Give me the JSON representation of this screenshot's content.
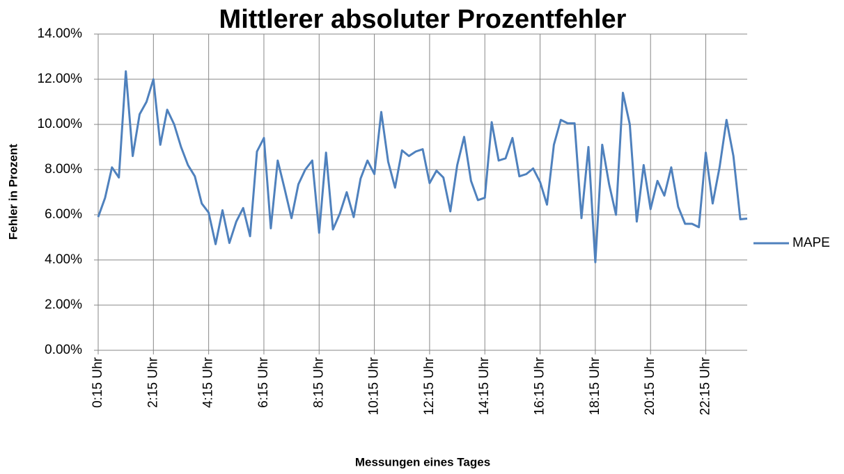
{
  "chart_data": {
    "type": "line",
    "title": "Mittlerer absoluter Prozentfehler",
    "x_label": "Messungen eines Tages",
    "y_label": "Fehler in Prozent",
    "categories": [
      "0:15 Uhr",
      null,
      null,
      null,
      null,
      null,
      null,
      null,
      "2:15 Uhr",
      null,
      null,
      null,
      null,
      null,
      null,
      null,
      "4:15 Uhr",
      null,
      null,
      null,
      null,
      null,
      null,
      null,
      "6:15 Uhr",
      null,
      null,
      null,
      null,
      null,
      null,
      null,
      "8:15 Uhr",
      null,
      null,
      null,
      null,
      null,
      null,
      null,
      "10:15 Uhr",
      null,
      null,
      null,
      null,
      null,
      null,
      null,
      "12:15 Uhr",
      null,
      null,
      null,
      null,
      null,
      null,
      null,
      "14:15 Uhr",
      null,
      null,
      null,
      null,
      null,
      null,
      null,
      "16:15 Uhr",
      null,
      null,
      null,
      null,
      null,
      null,
      null,
      "18:15 Uhr",
      null,
      null,
      null,
      null,
      null,
      null,
      null,
      "20:15 Uhr",
      null,
      null,
      null,
      null,
      null,
      null,
      null,
      "22:15 Uhr",
      null,
      null,
      null,
      null,
      null,
      null
    ],
    "series": [
      {
        "name": "MAPE",
        "color": "#4f81bd",
        "values": [
          5.9,
          6.75,
          8.1,
          7.65,
          12.35,
          8.6,
          10.45,
          11.0,
          12.0,
          9.1,
          10.65,
          10.0,
          9.0,
          8.2,
          7.7,
          6.5,
          6.1,
          4.7,
          6.2,
          4.75,
          5.7,
          6.3,
          5.05,
          8.8,
          9.4,
          5.4,
          8.4,
          7.15,
          5.85,
          7.35,
          8.0,
          8.4,
          5.2,
          8.75,
          5.35,
          6.05,
          7.0,
          5.9,
          7.6,
          8.4,
          7.8,
          10.55,
          8.35,
          7.2,
          8.85,
          8.6,
          8.8,
          8.9,
          7.4,
          7.95,
          7.65,
          6.15,
          8.2,
          9.45,
          7.5,
          6.65,
          6.75,
          10.1,
          8.4,
          8.5,
          9.4,
          7.7,
          7.8,
          8.05,
          7.45,
          6.45,
          9.1,
          10.2,
          10.05,
          10.05,
          5.85,
          9.0,
          3.9,
          9.1,
          7.35,
          6.0,
          11.4,
          10.0,
          5.7,
          8.2,
          6.25,
          7.5,
          6.85,
          8.1,
          6.35,
          5.6,
          5.6,
          5.45,
          8.75,
          6.5,
          8.1,
          10.2,
          8.6,
          5.8,
          5.83
        ]
      }
    ],
    "ylim": [
      0,
      14
    ],
    "yticks": [
      {
        "value": 0,
        "label": "0.00%"
      },
      {
        "value": 2,
        "label": "2.00%"
      },
      {
        "value": 4,
        "label": "4.00%"
      },
      {
        "value": 6,
        "label": "6.00%"
      },
      {
        "value": 8,
        "label": "8.00%"
      },
      {
        "value": 10,
        "label": "10.00%"
      },
      {
        "value": 12,
        "label": "12.00%"
      },
      {
        "value": 14,
        "label": "14.00%"
      }
    ],
    "grid": true,
    "legend": "right"
  }
}
